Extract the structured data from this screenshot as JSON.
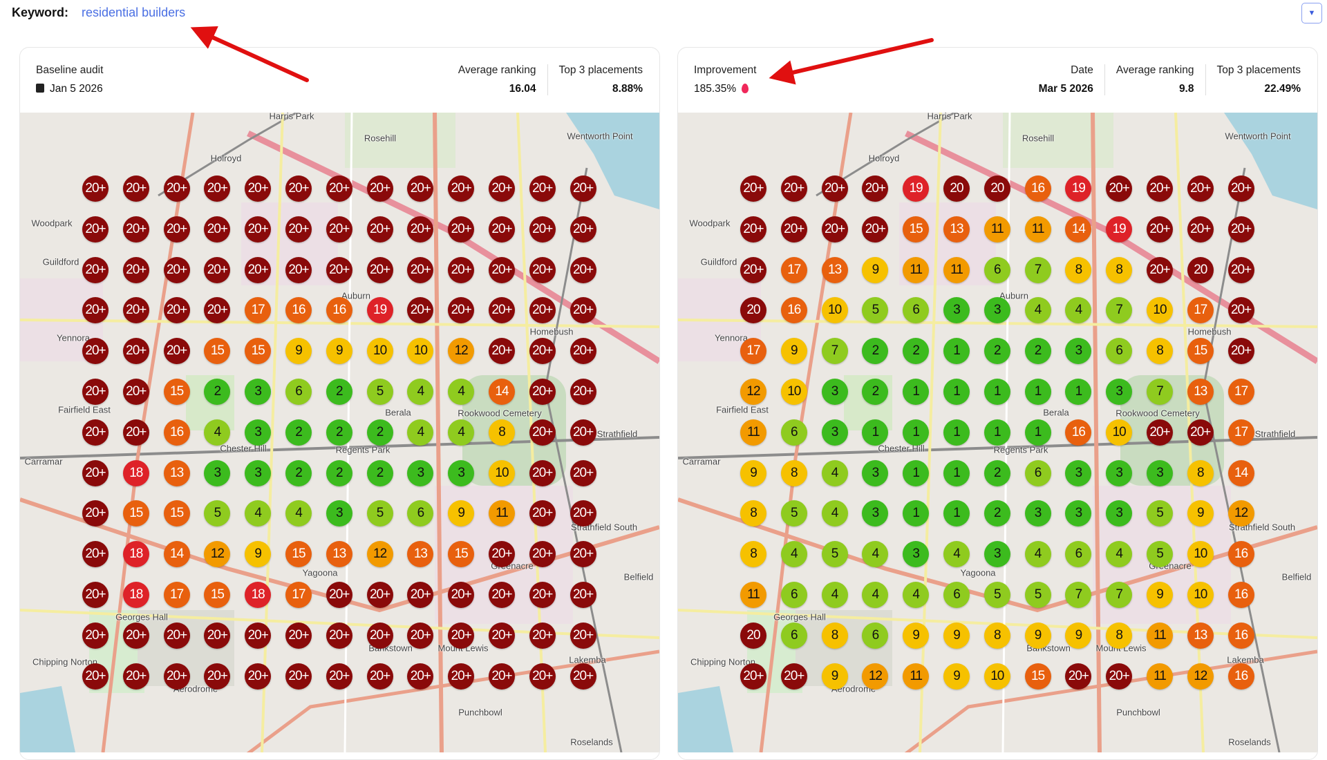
{
  "keyword": {
    "label": "Keyword:",
    "value": "residential builders"
  },
  "dropdown_icon": "caret-down-icon",
  "baseline": {
    "title": "Baseline audit",
    "date": "Jan 5 2026",
    "avg_label": "Average ranking",
    "avg_value": "16.04",
    "top3_label": "Top 3 placements",
    "top3_value": "8.88%",
    "grid": [
      [
        "20+",
        "20+",
        "20+",
        "20+",
        "20+",
        "20+",
        "20+",
        "20+",
        "20+",
        "20+",
        "20+",
        "20+",
        "20+"
      ],
      [
        "20+",
        "20+",
        "20+",
        "20+",
        "20+",
        "20+",
        "20+",
        "20+",
        "20+",
        "20+",
        "20+",
        "20+",
        "20+"
      ],
      [
        "20+",
        "20+",
        "20+",
        "20+",
        "20+",
        "20+",
        "20+",
        "20+",
        "20+",
        "20+",
        "20+",
        "20+",
        "20+"
      ],
      [
        "20+",
        "20+",
        "20+",
        "20+",
        "17",
        "16",
        "16",
        "19",
        "20+",
        "20+",
        "20+",
        "20+",
        "20+"
      ],
      [
        "20+",
        "20+",
        "20+",
        "15",
        "15",
        "9",
        "9",
        "10",
        "10",
        "12",
        "20+",
        "20+",
        "20+"
      ],
      [
        "20+",
        "20+",
        "15",
        "2",
        "3",
        "6",
        "2",
        "5",
        "4",
        "4",
        "14",
        "20+",
        "20+"
      ],
      [
        "20+",
        "20+",
        "16",
        "4",
        "3",
        "2",
        "2",
        "2",
        "4",
        "4",
        "8",
        "20+",
        "20+"
      ],
      [
        "20+",
        "18",
        "13",
        "3",
        "3",
        "2",
        "2",
        "2",
        "3",
        "3",
        "10",
        "20+",
        "20+"
      ],
      [
        "20+",
        "15",
        "15",
        "5",
        "4",
        "4",
        "3",
        "5",
        "6",
        "9",
        "11",
        "20+",
        "20+"
      ],
      [
        "20+",
        "18",
        "14",
        "12",
        "9",
        "15",
        "13",
        "12",
        "13",
        "15",
        "20+",
        "20+",
        "20+"
      ],
      [
        "20+",
        "18",
        "17",
        "15",
        "18",
        "17",
        "20+",
        "20+",
        "20+",
        "20+",
        "20+",
        "20+",
        "20+"
      ],
      [
        "20+",
        "20+",
        "20+",
        "20+",
        "20+",
        "20+",
        "20+",
        "20+",
        "20+",
        "20+",
        "20+",
        "20+",
        "20+"
      ],
      [
        "20+",
        "20+",
        "20+",
        "20+",
        "20+",
        "20+",
        "20+",
        "20+",
        "20+",
        "20+",
        "20+",
        "20+",
        "20+"
      ]
    ]
  },
  "current": {
    "improvement_label": "Improvement",
    "improvement_value": "185.35%",
    "date_label": "Date",
    "date": "Mar 5 2026",
    "avg_label": "Average ranking",
    "avg_value": "9.8",
    "top3_label": "Top 3 placements",
    "top3_value": "22.49%",
    "grid": [
      [
        "20+",
        "20+",
        "20+",
        "20+",
        "19",
        "20",
        "20",
        "16",
        "19",
        "20+",
        "20+",
        "20+",
        "20+"
      ],
      [
        "20+",
        "20+",
        "20+",
        "20+",
        "15",
        "13",
        "11",
        "11",
        "14",
        "19",
        "20+",
        "20+",
        "20+"
      ],
      [
        "20+",
        "17",
        "13",
        "9",
        "11",
        "11",
        "6",
        "7",
        "8",
        "8",
        "20+",
        "20",
        "20+"
      ],
      [
        "20",
        "16",
        "10",
        "5",
        "6",
        "3",
        "3",
        "4",
        "4",
        "7",
        "10",
        "17",
        "20+"
      ],
      [
        "17",
        "9",
        "7",
        "2",
        "2",
        "1",
        "2",
        "2",
        "3",
        "6",
        "8",
        "15",
        "20+"
      ],
      [
        "12",
        "10",
        "3",
        "2",
        "1",
        "1",
        "1",
        "1",
        "1",
        "3",
        "7",
        "13",
        "17"
      ],
      [
        "11",
        "6",
        "3",
        "1",
        "1",
        "1",
        "1",
        "1",
        "16",
        "10",
        "20+",
        "20+",
        "17"
      ],
      [
        "9",
        "8",
        "4",
        "3",
        "1",
        "1",
        "2",
        "6",
        "3",
        "3",
        "3",
        "8",
        "14"
      ],
      [
        "8",
        "5",
        "4",
        "3",
        "1",
        "1",
        "2",
        "3",
        "3",
        "3",
        "5",
        "9",
        "12"
      ],
      [
        "8",
        "4",
        "5",
        "4",
        "3",
        "4",
        "3",
        "4",
        "6",
        "4",
        "5",
        "10",
        "16"
      ],
      [
        "11",
        "6",
        "4",
        "4",
        "4",
        "6",
        "5",
        "5",
        "7",
        "7",
        "9",
        "10",
        "16"
      ],
      [
        "20",
        "6",
        "8",
        "6",
        "9",
        "9",
        "8",
        "9",
        "9",
        "8",
        "11",
        "13",
        "16"
      ],
      [
        "20+",
        "20+",
        "9",
        "12",
        "11",
        "9",
        "10",
        "15",
        "20+",
        "20+",
        "11",
        "12",
        "16"
      ]
    ]
  },
  "rank_colors": {
    "top3": "#3cbb1e",
    "good": "#8fcb1f",
    "mid": "#f6c100",
    "fair": "#f29a00",
    "poor": "#e8600e",
    "bad": "#de2228",
    "none": "#8a0a0a"
  },
  "map_places": [
    "Harris Park",
    "Rosehill",
    "Wentworth Point",
    "Holroyd",
    "Woodpark",
    "Guildford",
    "Auburn",
    "Homebush",
    "Yennora",
    "Fairfield East",
    "Berala",
    "Chester Hill",
    "Regents Park",
    "Strathfield",
    "Carramar",
    "Strathfield South",
    "Yagoona",
    "Greenacre",
    "Belfield",
    "Georges Hall",
    "Bankstown",
    "Mount Lewis",
    "Chipping Norton",
    "Lakemba",
    "Punchbowl",
    "Roselands",
    "Rookwood Cemetery",
    "Aerodrome"
  ]
}
